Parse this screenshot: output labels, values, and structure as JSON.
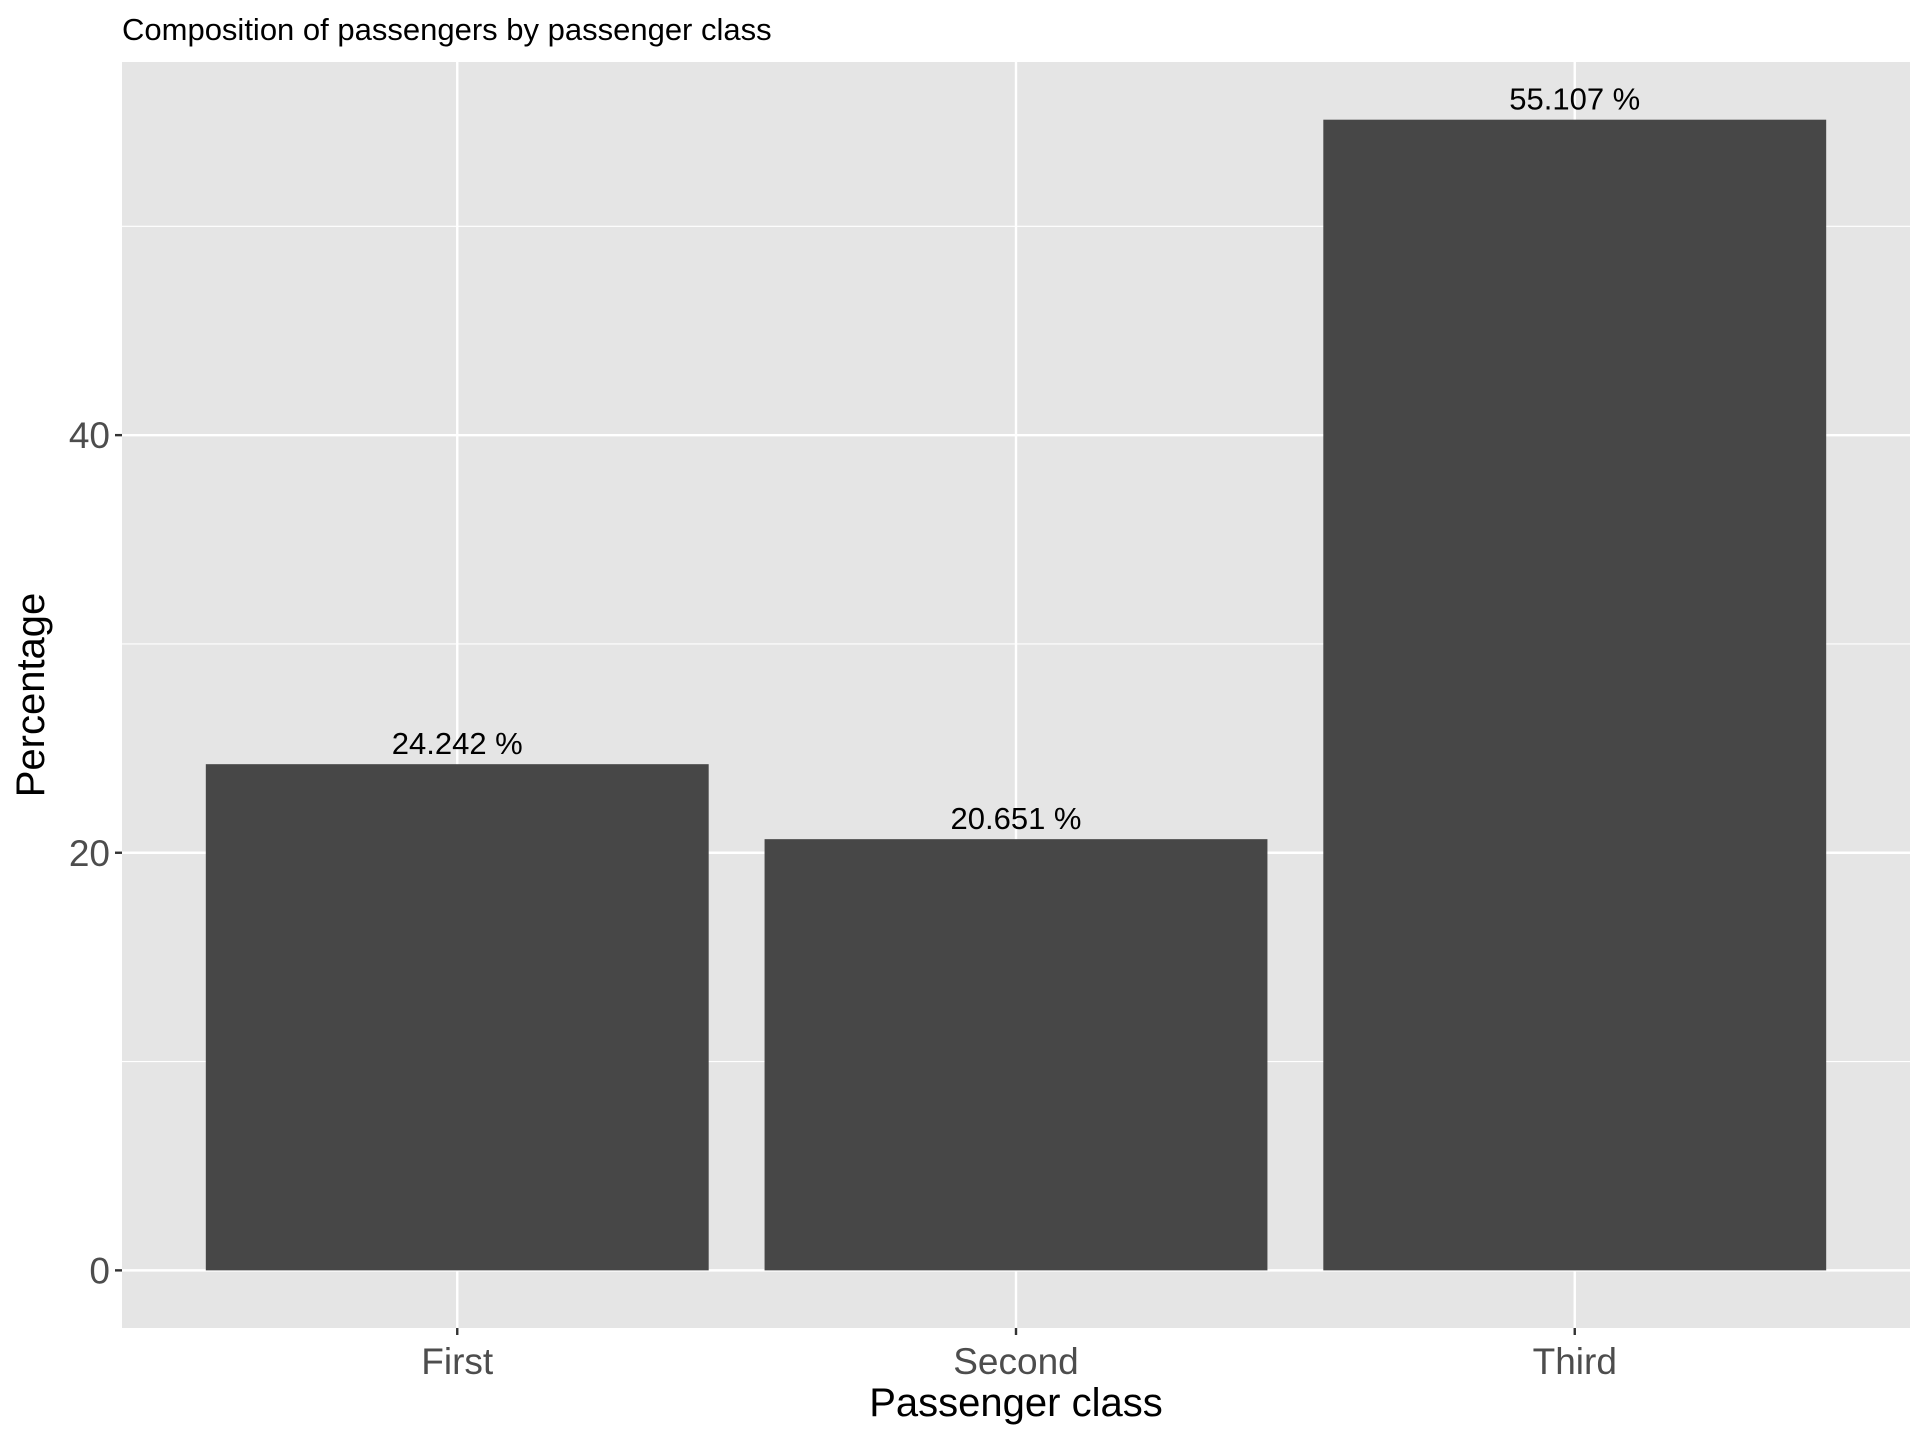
{
  "chart_data": {
    "type": "bar",
    "title": "Composition of passengers by passenger class",
    "xlabel": "Passenger class",
    "ylabel": "Percentage",
    "categories": [
      "First",
      "Second",
      "Third"
    ],
    "values": [
      24.242,
      20.651,
      55.107
    ],
    "data_labels": [
      "24.242 %",
      "20.651 %",
      "55.107 %"
    ],
    "ylim": [
      -2.76,
      57.87
    ],
    "y_ticks": [
      0,
      20,
      40
    ],
    "y_tick_labels": [
      "0",
      "20",
      "40"
    ],
    "y_minor_ticks": [
      10,
      30,
      50
    ],
    "grid": true,
    "legend": "none",
    "colors": {
      "bar": "#474747",
      "panel_background": "#e5e5e5",
      "grid_line": "#ffffff",
      "tick_text": "#4d4d4d",
      "tick_mark": "#333333"
    }
  }
}
